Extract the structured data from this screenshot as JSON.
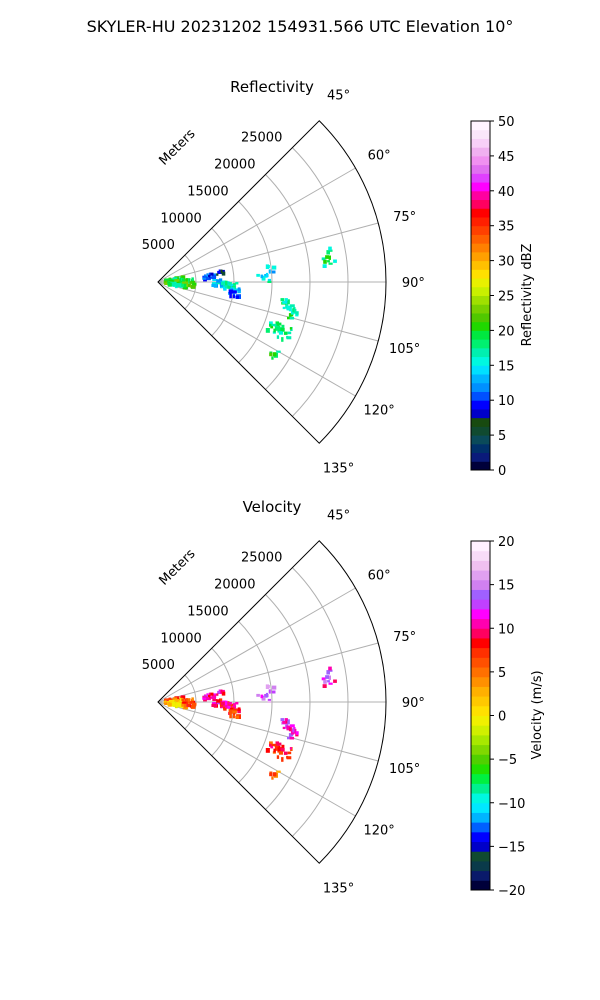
{
  "figure_title": "SKYLER-HU  20231202  154931.566 UTC Elevation 10°",
  "axis_unit_label": "Meters",
  "chart_data": [
    {
      "type": "polar-sector",
      "title": "Reflectivity",
      "azimuth_range_deg": [
        45,
        135
      ],
      "azimuth_ticks": [
        "45°",
        "60°",
        "75°",
        "90°",
        "105°",
        "120°",
        "135°"
      ],
      "azimuth_tick_values": [
        45,
        60,
        75,
        90,
        105,
        120,
        135
      ],
      "range_ticks": [
        "5000",
        "10000",
        "15000",
        "20000",
        "25000"
      ],
      "range_tick_values": [
        5000,
        10000,
        15000,
        20000,
        25000
      ],
      "range_max_m": 30000,
      "grid": true,
      "colorbar": {
        "label": "Reflectivity dBZ",
        "min": 0,
        "max": 50,
        "ticks": [
          "0",
          "5",
          "10",
          "15",
          "20",
          "25",
          "30",
          "35",
          "40",
          "45",
          "50"
        ],
        "tick_values": [
          0,
          5,
          10,
          15,
          20,
          25,
          30,
          35,
          40,
          45,
          50
        ],
        "colors": [
          "#00003a",
          "#0a1a7a",
          "#00306a",
          "#0a4a5a",
          "#104a30",
          "#184a10",
          "#0000c8",
          "#0000ff",
          "#0050ff",
          "#0090ff",
          "#00b4ff",
          "#00e0ff",
          "#00f8e0",
          "#00f0b0",
          "#00f070",
          "#00e840",
          "#20d800",
          "#50c800",
          "#78d000",
          "#a0e000",
          "#c8f000",
          "#e8f000",
          "#ffe000",
          "#ffc000",
          "#ffa000",
          "#ff8000",
          "#ff6000",
          "#ff4000",
          "#ff2000",
          "#ff0000",
          "#ff0060",
          "#ff00a0",
          "#ff00ff",
          "#e040ff",
          "#e070f0",
          "#f090f0",
          "#f0b0f0",
          "#f8d0f8",
          "#fae6fa",
          "#fff4ff"
        ]
      },
      "echo_clusters": [
        {
          "az": 84,
          "r": 2200,
          "spread_az": 6,
          "spread_r": 1200,
          "n": 28,
          "value": 20
        },
        {
          "az": 92,
          "r": 2200,
          "spread_az": 7,
          "spread_r": 1300,
          "n": 32,
          "value": 22
        },
        {
          "az": 99,
          "r": 2600,
          "spread_az": 5,
          "spread_r": 1200,
          "n": 22,
          "value": 18
        },
        {
          "az": 88,
          "r": 3800,
          "spread_az": 4,
          "spread_r": 900,
          "n": 12,
          "value": 19
        },
        {
          "az": 95,
          "r": 4000,
          "spread_az": 4,
          "spread_r": 900,
          "n": 14,
          "value": 21
        },
        {
          "az": 84,
          "r": 6800,
          "spread_az": 2.5,
          "spread_r": 700,
          "n": 16,
          "value": 10
        },
        {
          "az": 82,
          "r": 8300,
          "spread_az": 2,
          "spread_r": 500,
          "n": 6,
          "value": 7
        },
        {
          "az": 91,
          "r": 8000,
          "spread_az": 3,
          "spread_r": 700,
          "n": 16,
          "value": 14
        },
        {
          "az": 93.5,
          "r": 9500,
          "spread_az": 3,
          "spread_r": 900,
          "n": 20,
          "value": 16
        },
        {
          "az": 98,
          "r": 10200,
          "spread_az": 3,
          "spread_r": 700,
          "n": 14,
          "value": 12
        },
        {
          "az": 88,
          "r": 13800,
          "spread_az": 2,
          "spread_r": 900,
          "n": 10,
          "value": 15
        },
        {
          "az": 84,
          "r": 15000,
          "spread_az": 2,
          "spread_r": 500,
          "n": 5,
          "value": 14
        },
        {
          "az": 100,
          "r": 17400,
          "spread_az": 2.5,
          "spread_r": 900,
          "n": 12,
          "value": 17
        },
        {
          "az": 103.5,
          "r": 18500,
          "spread_az": 2,
          "spread_r": 800,
          "n": 10,
          "value": 18
        },
        {
          "az": 112,
          "r": 17500,
          "spread_az": 3,
          "spread_r": 1800,
          "n": 26,
          "value": 18
        },
        {
          "az": 122,
          "r": 17800,
          "spread_az": 2,
          "spread_r": 600,
          "n": 6,
          "value": 19
        },
        {
          "az": 83.5,
          "r": 22800,
          "spread_az": 2,
          "spread_r": 800,
          "n": 8,
          "value": 18
        },
        {
          "az": 79.5,
          "r": 23000,
          "spread_az": 1,
          "spread_r": 300,
          "n": 3,
          "value": 18
        }
      ]
    },
    {
      "type": "polar-sector",
      "title": "Velocity",
      "azimuth_range_deg": [
        45,
        135
      ],
      "azimuth_ticks": [
        "45°",
        "60°",
        "75°",
        "90°",
        "105°",
        "120°",
        "135°"
      ],
      "azimuth_tick_values": [
        45,
        60,
        75,
        90,
        105,
        120,
        135
      ],
      "range_ticks": [
        "5000",
        "10000",
        "15000",
        "20000",
        "25000"
      ],
      "range_tick_values": [
        5000,
        10000,
        15000,
        20000,
        25000
      ],
      "range_max_m": 30000,
      "grid": true,
      "colorbar": {
        "label": "Velocity (m/s)",
        "min": -20,
        "max": 20,
        "ticks": [
          "−20",
          "−15",
          "−10",
          "−5",
          "0",
          "5",
          "10",
          "15",
          "20"
        ],
        "tick_values": [
          -20,
          -15,
          -10,
          -5,
          0,
          5,
          10,
          15,
          20
        ],
        "colors": [
          "#00003a",
          "#0a1a6a",
          "#0a3a4a",
          "#104a30",
          "#0000c8",
          "#0000ff",
          "#0060ff",
          "#00b4ff",
          "#00e8ff",
          "#00f8e0",
          "#00f090",
          "#00f040",
          "#20e000",
          "#50d000",
          "#80d800",
          "#a8e800",
          "#d0f000",
          "#f0f000",
          "#ffe000",
          "#ffc800",
          "#ffb000",
          "#ff9000",
          "#ff7000",
          "#ff5000",
          "#ff3000",
          "#ff0000",
          "#ff0060",
          "#ff00b0",
          "#ff00ff",
          "#c040ff",
          "#a060ff",
          "#d080f0",
          "#e0a0f0",
          "#f0c0f0",
          "#f8dcf8",
          "#fff0ff"
        ]
      },
      "echo_clusters": [
        {
          "az": 84,
          "r": 2200,
          "spread_az": 6,
          "spread_r": 1200,
          "n": 28,
          "value": 7
        },
        {
          "az": 92,
          "r": 2200,
          "spread_az": 7,
          "spread_r": 1300,
          "n": 32,
          "value": 2
        },
        {
          "az": 99,
          "r": 2600,
          "spread_az": 5,
          "spread_r": 1200,
          "n": 22,
          "value": 1
        },
        {
          "az": 88,
          "r": 3800,
          "spread_az": 4,
          "spread_r": 900,
          "n": 12,
          "value": 5
        },
        {
          "az": 95,
          "r": 4000,
          "spread_az": 4,
          "spread_r": 900,
          "n": 14,
          "value": 6
        },
        {
          "az": 84,
          "r": 6800,
          "spread_az": 2.5,
          "spread_r": 700,
          "n": 16,
          "value": 10
        },
        {
          "az": 82,
          "r": 8300,
          "spread_az": 2,
          "spread_r": 500,
          "n": 6,
          "value": 10
        },
        {
          "az": 91,
          "r": 8000,
          "spread_az": 3,
          "spread_r": 700,
          "n": 16,
          "value": 10
        },
        {
          "az": 93.5,
          "r": 9500,
          "spread_az": 3,
          "spread_r": 900,
          "n": 20,
          "value": 9
        },
        {
          "az": 98,
          "r": 10200,
          "spread_az": 3,
          "spread_r": 700,
          "n": 14,
          "value": 8
        },
        {
          "az": 88,
          "r": 13800,
          "spread_az": 2,
          "spread_r": 900,
          "n": 10,
          "value": 14
        },
        {
          "az": 84,
          "r": 15000,
          "spread_az": 2,
          "spread_r": 500,
          "n": 5,
          "value": 14
        },
        {
          "az": 100,
          "r": 17400,
          "spread_az": 2.5,
          "spread_r": 900,
          "n": 12,
          "value": 12
        },
        {
          "az": 103.5,
          "r": 18500,
          "spread_az": 2,
          "spread_r": 800,
          "n": 10,
          "value": 12
        },
        {
          "az": 112,
          "r": 17500,
          "spread_az": 3,
          "spread_r": 1800,
          "n": 26,
          "value": 8
        },
        {
          "az": 122,
          "r": 17800,
          "spread_az": 2,
          "spread_r": 600,
          "n": 6,
          "value": 5
        },
        {
          "az": 83.5,
          "r": 22800,
          "spread_az": 2,
          "spread_r": 800,
          "n": 8,
          "value": 12
        },
        {
          "az": 79.5,
          "r": 23000,
          "spread_az": 1,
          "spread_r": 300,
          "n": 3,
          "value": 14
        }
      ]
    }
  ]
}
